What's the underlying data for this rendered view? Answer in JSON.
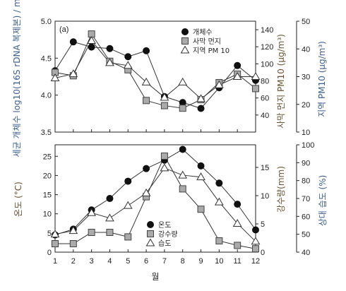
{
  "chart_data": [
    {
      "type": "line",
      "panel_label": "(a)",
      "x": [
        1,
        2,
        3,
        4,
        5,
        6,
        7,
        8,
        9,
        10,
        11,
        12
      ],
      "xlim": [
        1,
        12
      ],
      "left_axis": {
        "label": "세균 개체수 log10(16S rDNA 복제본) / m³",
        "ylim": [
          3.5,
          5.0
        ],
        "ticks": [
          "3.5",
          "4.0",
          "4.5",
          "5.0"
        ]
      },
      "right_axis_1": {
        "label": "사막 먼지 PM10 (μg/m³)",
        "ylim": [
          20,
          150
        ],
        "ticks": [
          "40",
          "60",
          "80",
          "100",
          "120",
          "140"
        ]
      },
      "right_axis_2": {
        "label": "지역 PM10 (μg/m³)",
        "ylim": [
          10,
          50
        ],
        "ticks": [
          "10",
          "20",
          "30",
          "40",
          "50"
        ]
      },
      "grid": false,
      "legend_position": "top-right",
      "series": [
        {
          "name": "개체수",
          "marker": "circle-filled",
          "axis": "left",
          "values": [
            4.33,
            4.72,
            4.65,
            4.63,
            4.52,
            4.6,
            3.98,
            3.9,
            3.82,
            4.1,
            4.4,
            4.2
          ]
        },
        {
          "name": "사막 먼지",
          "marker": "square-gray",
          "axis": "right_axis_1",
          "values": [
            90,
            86,
            135,
            103,
            93,
            57,
            51,
            48,
            58,
            78,
            88,
            71
          ]
        },
        {
          "name": "지역 PM 10",
          "marker": "triangle-open",
          "axis": "right_axis_2",
          "values": [
            29.5,
            31,
            43,
            35,
            34,
            28,
            22.5,
            28,
            22,
            27,
            30,
            30
          ]
        }
      ]
    },
    {
      "type": "line",
      "left_axis": {
        "label": "온도 (°C)",
        "ylim": [
          0,
          28
        ],
        "ticks": [
          "0",
          "5",
          "10",
          "15",
          "20",
          "25"
        ]
      },
      "right_axis_1": {
        "label": "강수량(mm)",
        "ylim": [
          0,
          19
        ],
        "ticks": [
          "0",
          "5",
          "10",
          "15"
        ]
      },
      "right_axis_2": {
        "label": "상대 습도 (%)",
        "ylim": [
          40,
          100
        ],
        "ticks": [
          "40",
          "50",
          "60",
          "70",
          "80",
          "90",
          "100"
        ]
      },
      "xlabel": "월",
      "x_ticks": [
        "1",
        "2",
        "3",
        "4",
        "5",
        "6",
        "7",
        "8",
        "9",
        "10",
        "11",
        "12"
      ],
      "grid": false,
      "legend_position": "bottom-right",
      "series": [
        {
          "name": "온도",
          "marker": "circle-filled",
          "axis": "left",
          "values": [
            4.5,
            6.0,
            11.0,
            14.0,
            18.5,
            21.8,
            24.0,
            26.8,
            22.5,
            18.0,
            12.5,
            5.8
          ]
        },
        {
          "name": "강수량",
          "marker": "square-gray",
          "axis": "right_axis_1",
          "values": [
            1.5,
            1.5,
            3.5,
            3.5,
            2.7,
            9.8,
            17.0,
            11.2,
            7.6,
            2.0,
            1.2,
            0.6
          ]
        },
        {
          "name": "습도",
          "marker": "triangle-open",
          "axis": "right_axis_2",
          "values": [
            50,
            52,
            62,
            59,
            66,
            73,
            87,
            83,
            82,
            68,
            56,
            46
          ]
        }
      ]
    }
  ]
}
